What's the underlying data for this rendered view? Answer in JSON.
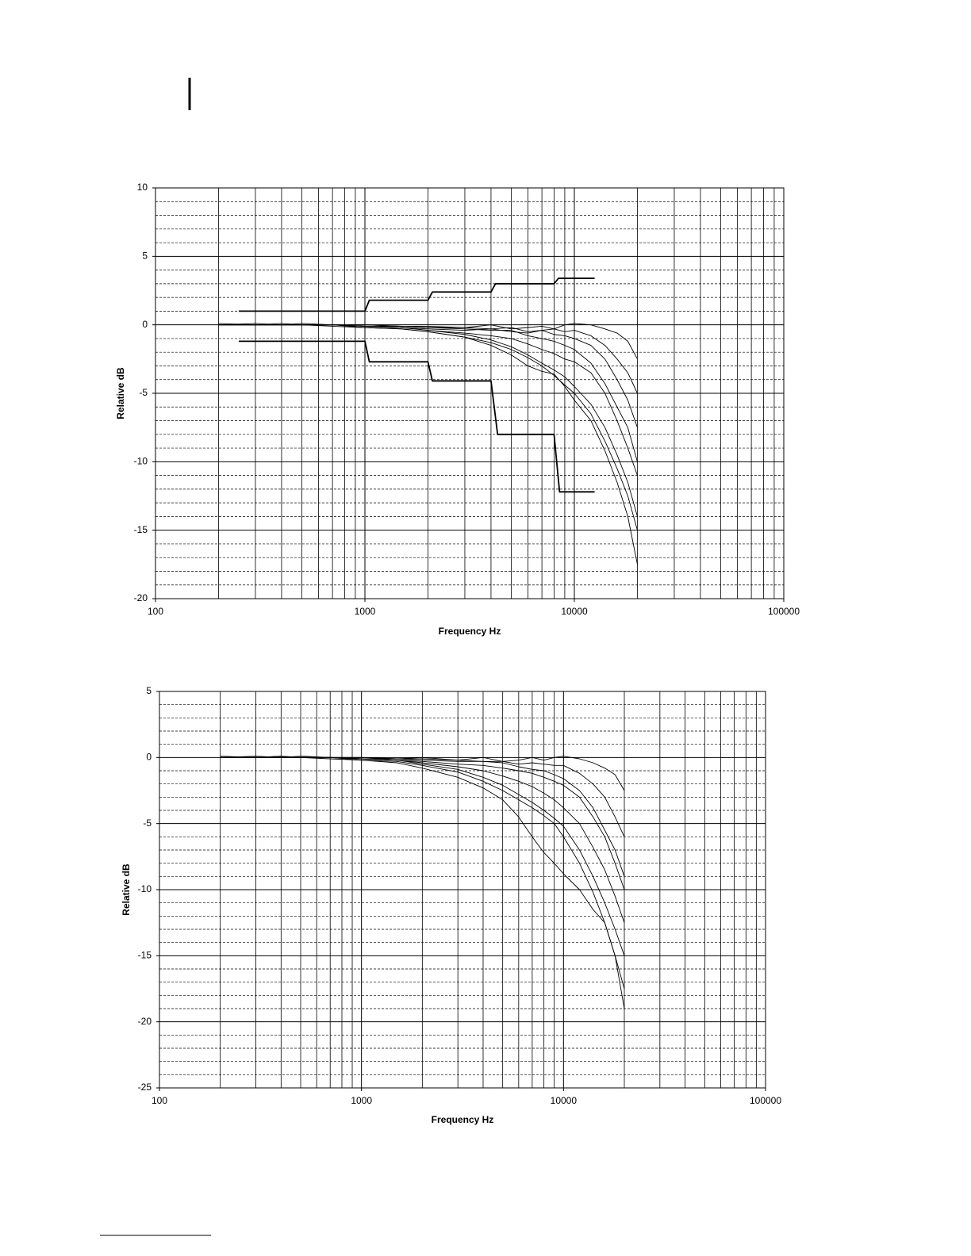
{
  "chart_data": [
    {
      "type": "line",
      "xscale": "log",
      "grid": true,
      "color": "#000000",
      "x_label": "Frequency Hz",
      "y_label": "Relative dB",
      "xlim": [
        100,
        100000
      ],
      "xticks": [
        100,
        1000,
        10000,
        100000
      ],
      "ylim": [
        -20,
        10
      ],
      "yticks": [
        -20,
        -15,
        -10,
        -5,
        0,
        5,
        10
      ],
      "x": [
        200,
        300,
        400,
        500,
        700,
        1000,
        1500,
        2000,
        3000,
        4000,
        5000,
        6000,
        7000,
        8000,
        9000,
        10000,
        12000,
        14000,
        16000,
        18000,
        20000
      ],
      "series": [
        {
          "color": "#000000",
          "values": [
            0,
            0,
            0,
            0,
            0,
            0,
            -0.1,
            -0.2,
            -0.2,
            0,
            -0.3,
            -0.2,
            -0.1,
            -0.3,
            0,
            0.1,
            0,
            -0.3,
            -0.6,
            -1.2,
            -2.5
          ]
        },
        {
          "color": "#000000",
          "values": [
            0,
            0,
            0,
            0,
            0,
            0,
            -0.1,
            -0.1,
            -0.2,
            -0.3,
            -0.2,
            -0.5,
            -0.4,
            -0.3,
            -0.5,
            -0.4,
            -0.8,
            -1.5,
            -2.5,
            -3.5,
            -5
          ]
        },
        {
          "color": "#000000",
          "values": [
            0,
            0,
            0,
            0,
            0,
            -0.1,
            -0.2,
            -0.3,
            -0.4,
            -0.3,
            -0.5,
            -0.6,
            -0.4,
            -0.7,
            -0.8,
            -1,
            -1.5,
            -2.5,
            -4,
            -5.5,
            -7.5
          ]
        },
        {
          "color": "#000000",
          "values": [
            0,
            0,
            0,
            0,
            0,
            -0.1,
            -0.1,
            -0.2,
            -0.3,
            -0.4,
            -0.4,
            -0.8,
            -1,
            -1.2,
            -1.5,
            -1.8,
            -2.8,
            -4.3,
            -6,
            -7.5,
            -10
          ]
        },
        {
          "color": "#000000",
          "values": [
            0,
            0,
            0.1,
            0,
            0,
            -0.1,
            -0.2,
            -0.4,
            -0.6,
            -0.8,
            -1,
            -1.4,
            -1.8,
            -2.1,
            -2.5,
            -2.7,
            -3.5,
            -5,
            -7,
            -9,
            -11
          ]
        },
        {
          "color": "#000000",
          "values": [
            0.1,
            0,
            0,
            0.1,
            0,
            -0.1,
            -0.2,
            -0.4,
            -0.7,
            -1.1,
            -1.6,
            -2.2,
            -2.8,
            -3.3,
            -3.8,
            -4.5,
            -5.8,
            -7.5,
            -9.5,
            -11.5,
            -14
          ]
        },
        {
          "color": "#000000",
          "values": [
            0,
            0,
            0,
            0,
            0,
            -0.2,
            -0.3,
            -0.5,
            -0.9,
            -1.3,
            -1.8,
            -2.4,
            -3,
            -3.7,
            -4.4,
            -5,
            -6.5,
            -8.5,
            -10.5,
            -12.5,
            -15
          ]
        },
        {
          "color": "#000000",
          "values": [
            0,
            0.1,
            0,
            0,
            -0.1,
            -0.2,
            -0.3,
            -0.5,
            -0.9,
            -1.5,
            -2.2,
            -3,
            -3.4,
            -3.6,
            -4.5,
            -5.5,
            -7,
            -9.2,
            -11.5,
            -14,
            -17.5
          ]
        },
        {
          "color": "#000000",
          "x": [
            250,
            1000,
            1050,
            2000,
            2100,
            4000,
            4200,
            8000,
            8400,
            12500
          ],
          "values": [
            1,
            1,
            1.8,
            1.8,
            2.4,
            2.4,
            3,
            3,
            3.4,
            3.4
          ]
        },
        {
          "color": "#000000",
          "x": [
            250,
            1000,
            1050,
            2000,
            2100,
            4000,
            4300,
            8000,
            8500,
            12500
          ],
          "values": [
            -1.2,
            -1.2,
            -2.7,
            -2.7,
            -4.1,
            -4.1,
            -8,
            -8,
            -12.2,
            -12.2
          ]
        }
      ]
    },
    {
      "type": "line",
      "xscale": "log",
      "grid": true,
      "color": "#000000",
      "x_label": "Frequency Hz",
      "y_label": "Relative dB",
      "xlim": [
        100,
        100000
      ],
      "xticks": [
        100,
        1000,
        10000,
        100000
      ],
      "ylim": [
        -25,
        5
      ],
      "yticks": [
        -25,
        -20,
        -15,
        -10,
        -5,
        0,
        5
      ],
      "x": [
        200,
        300,
        400,
        500,
        700,
        1000,
        1500,
        2000,
        3000,
        4000,
        5000,
        6000,
        7000,
        8000,
        9000,
        10000,
        12000,
        14000,
        16000,
        18000,
        20000
      ],
      "series": [
        {
          "color": "#000000",
          "values": [
            0,
            0,
            0,
            0,
            0,
            0,
            -0.1,
            0,
            -0.2,
            0,
            -0.3,
            -0.2,
            0,
            -0.2,
            0,
            0.1,
            -0.1,
            -0.4,
            -0.8,
            -1.3,
            -2.5
          ]
        },
        {
          "color": "#000000",
          "values": [
            0,
            0,
            0,
            0,
            0,
            0,
            -0.1,
            -0.1,
            -0.2,
            -0.3,
            -0.3,
            -0.5,
            -0.4,
            -0.5,
            -0.6,
            -0.6,
            -1.2,
            -2,
            -3,
            -4.5,
            -6
          ]
        },
        {
          "color": "#000000",
          "values": [
            0,
            0,
            0.1,
            0,
            0,
            -0.1,
            -0.2,
            -0.3,
            -0.5,
            -0.6,
            -0.8,
            -1,
            -1.2,
            -1.5,
            -1.8,
            -2.1,
            -3,
            -4.5,
            -6,
            -8,
            -10
          ]
        },
        {
          "color": "#000000",
          "values": [
            0,
            0.1,
            0,
            0,
            0,
            -0.1,
            -0.2,
            -0.4,
            -0.7,
            -1,
            -1.4,
            -1.8,
            -2.2,
            -2.7,
            -3.2,
            -3.8,
            -5,
            -6.8,
            -8.5,
            -10.5,
            -12.5
          ]
        },
        {
          "color": "#000000",
          "values": [
            0,
            0,
            0,
            0.1,
            0,
            -0.1,
            -0.2,
            -0.5,
            -0.9,
            -1.5,
            -2.1,
            -2.8,
            -3.4,
            -4,
            -4.6,
            -5.2,
            -7,
            -9,
            -11,
            -13,
            -15
          ]
        },
        {
          "color": "#000000",
          "values": [
            0.1,
            0,
            0,
            0,
            0,
            -0.2,
            -0.3,
            -0.6,
            -1.1,
            -1.8,
            -2.5,
            -3.2,
            -3.8,
            -4.4,
            -5,
            -6,
            -8,
            -10.2,
            -12.5,
            -15,
            -17.5
          ]
        },
        {
          "color": "#000000",
          "values": [
            0,
            0,
            0.1,
            0,
            -0.1,
            -0.2,
            -0.4,
            -0.8,
            -1.5,
            -2.3,
            -3.2,
            -4.5,
            -6,
            -7.2,
            -8,
            -8.8,
            -10,
            -11.5,
            -12.5,
            -15,
            -19
          ]
        },
        {
          "color": "#000000",
          "values": [
            0,
            0,
            0,
            0,
            0,
            -0.1,
            -0.1,
            -0.2,
            -0.3,
            -0.3,
            -0.4,
            -0.7,
            -0.9,
            -1,
            -1.3,
            -1.6,
            -2.5,
            -3.8,
            -5.5,
            -7,
            -9
          ]
        }
      ]
    }
  ]
}
